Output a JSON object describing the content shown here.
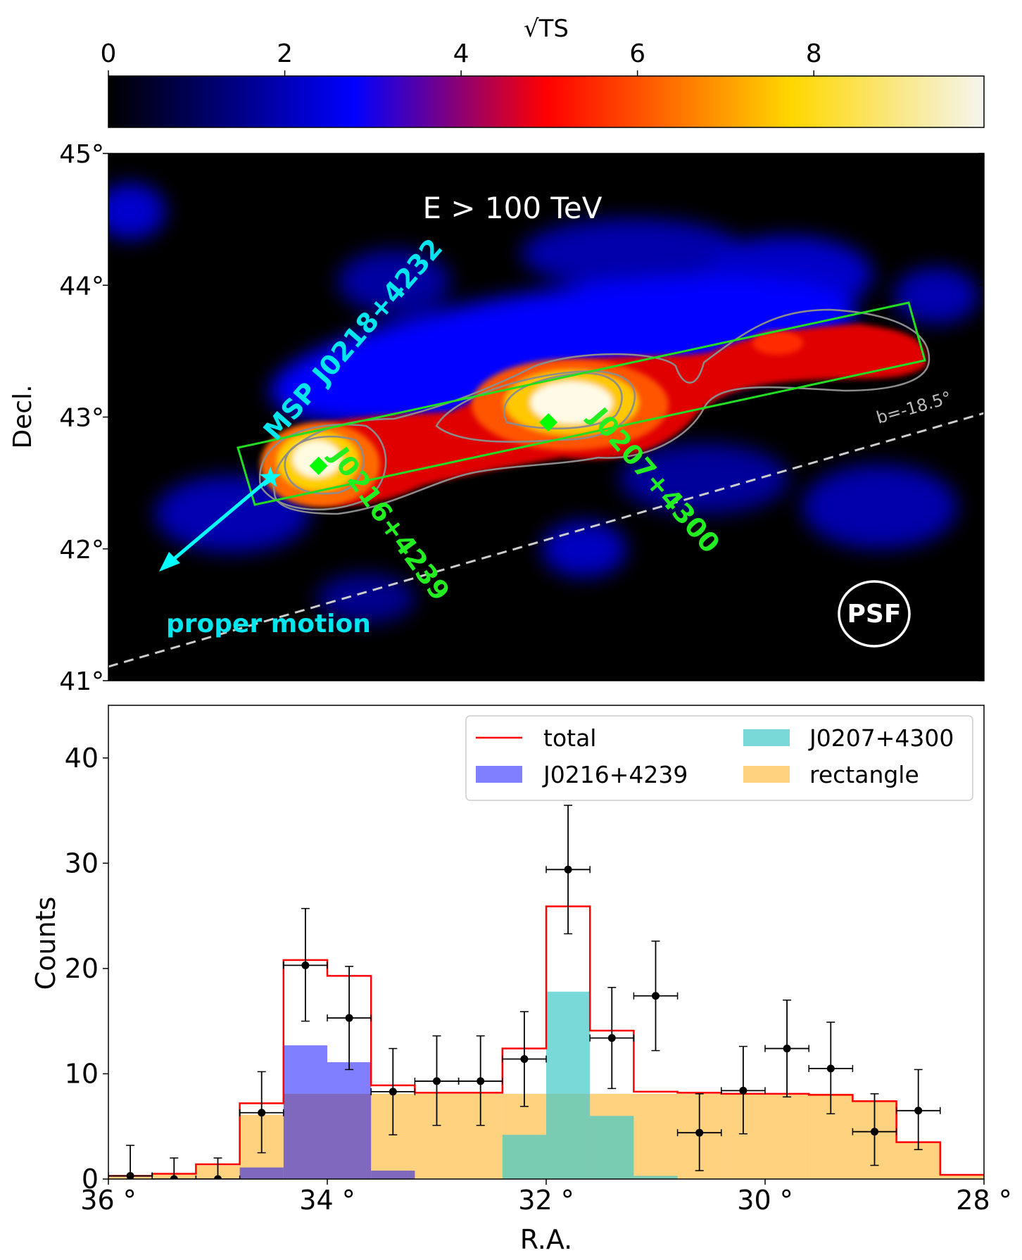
{
  "colorbar": {
    "label": "√TS",
    "tick_labels": [
      "0",
      "2",
      "4",
      "6",
      "8"
    ],
    "tick_values": [
      0,
      2,
      4,
      6,
      8
    ],
    "range": [
      0,
      9.93
    ],
    "colormap": [
      "#000000",
      "#0000ff",
      "#ff0000",
      "#ffd700",
      "#f5f5f0"
    ]
  },
  "chart_data": [
    {
      "type": "heatmap",
      "title": "E > 100 TeV",
      "xlabel": "",
      "ylabel": "Decl.",
      "xlim": [
        36,
        28
      ],
      "ylim": [
        41,
        45
      ],
      "y_tick_labels": [
        "41°",
        "42°",
        "43°",
        "44°",
        "45°"
      ],
      "y_tick_values": [
        41,
        42,
        43,
        44,
        45
      ],
      "sources": [
        {
          "name": "J0216+4239",
          "ra": 34.08,
          "dec": 42.63,
          "marker": "diamond",
          "color": "#00ff00"
        },
        {
          "name": "J0207+4300",
          "ra": 31.98,
          "dec": 42.96,
          "marker": "diamond",
          "color": "#00ff00"
        }
      ],
      "pulsar": {
        "name": "MSP J0218+4232",
        "ra": 34.52,
        "dec": 42.54,
        "marker": "star",
        "color": "#00ffff"
      },
      "proper_motion_label": "proper motion",
      "galactic_line_label": "b=-18.5°",
      "psf_label": "PSF",
      "rectangle": {
        "color": "#22dd22"
      }
    },
    {
      "type": "bar",
      "xlabel": "R.A.",
      "ylabel": "Counts",
      "xlim": [
        36,
        28
      ],
      "ylim": [
        0,
        45
      ],
      "x_tick_labels": [
        "36 °",
        "34 °",
        "32 °",
        "30 °",
        "28 °"
      ],
      "x_tick_values": [
        36,
        34,
        32,
        30,
        28
      ],
      "y_tick_labels": [
        "0",
        "10",
        "20",
        "30",
        "40"
      ],
      "y_tick_values": [
        0,
        10,
        20,
        30,
        40
      ],
      "bin_edges": [
        36.0,
        35.6,
        35.2,
        34.8,
        34.4,
        34.0,
        33.6,
        33.2,
        32.8,
        32.4,
        32.0,
        31.6,
        31.2,
        30.8,
        30.4,
        30.0,
        29.6,
        29.2,
        28.8,
        28.4,
        28.0
      ],
      "legend": [
        {
          "label": "total",
          "color": "#ff0000",
          "kind": "line"
        },
        {
          "label": "J0207+4300",
          "color": "#40c8c8",
          "kind": "patch"
        },
        {
          "label": "J0216+4239",
          "color": "#0000ff",
          "kind": "patch"
        },
        {
          "label": "rectangle",
          "color": "#ffa500",
          "kind": "patch"
        }
      ],
      "series": [
        {
          "name": "rectangle",
          "values": [
            0.2,
            0.5,
            1.3,
            6.1,
            8.1,
            8.1,
            8.1,
            8.1,
            8.1,
            8.1,
            8.1,
            8.1,
            8.1,
            8.1,
            8.1,
            8.1,
            8.1,
            7.4,
            3.5,
            0.4
          ]
        },
        {
          "name": "J0216+4239",
          "values": [
            0,
            0,
            0,
            1.1,
            12.7,
            11.1,
            0.8,
            0,
            0,
            0,
            0,
            0,
            0,
            0,
            0,
            0,
            0,
            0,
            0,
            0
          ]
        },
        {
          "name": "J0207+4300",
          "values": [
            0,
            0,
            0,
            0,
            0,
            0,
            0,
            0,
            0,
            4.2,
            17.8,
            6.0,
            0.3,
            0,
            0,
            0,
            0,
            0,
            0,
            0
          ]
        },
        {
          "name": "total",
          "values": [
            0.3,
            0.5,
            1.4,
            7.2,
            20.8,
            19.3,
            8.9,
            8.2,
            8.2,
            12.4,
            25.9,
            14.1,
            8.3,
            8.2,
            8.1,
            8.1,
            8.0,
            7.4,
            3.5,
            0.4
          ]
        },
        {
          "name": "data",
          "x": [
            35.8,
            35.4,
            35.0,
            34.6,
            34.2,
            33.8,
            33.4,
            33.0,
            32.6,
            32.2,
            31.8,
            31.4,
            31.0,
            30.6,
            30.2,
            29.8,
            29.4,
            29.0,
            28.6
          ],
          "values": [
            0.3,
            0,
            0,
            6.3,
            20.3,
            15.3,
            8.3,
            9.3,
            9.3,
            11.4,
            29.4,
            13.4,
            17.4,
            4.4,
            8.4,
            12.4,
            10.5,
            4.5,
            6.5
          ],
          "err_low": [
            0.3,
            0,
            0,
            3.8,
            5.3,
            4.9,
            4.1,
            4.2,
            4.2,
            4.5,
            6.1,
            4.8,
            5.2,
            3.6,
            4.1,
            4.6,
            4.3,
            3.2,
            3.7
          ],
          "err_high": [
            2.9,
            2.0,
            2.0,
            3.9,
            5.4,
            4.9,
            4.1,
            4.3,
            4.3,
            4.5,
            6.1,
            4.8,
            5.2,
            3.7,
            4.2,
            4.6,
            4.4,
            3.6,
            3.9
          ],
          "xerr": 0.2
        }
      ]
    }
  ]
}
